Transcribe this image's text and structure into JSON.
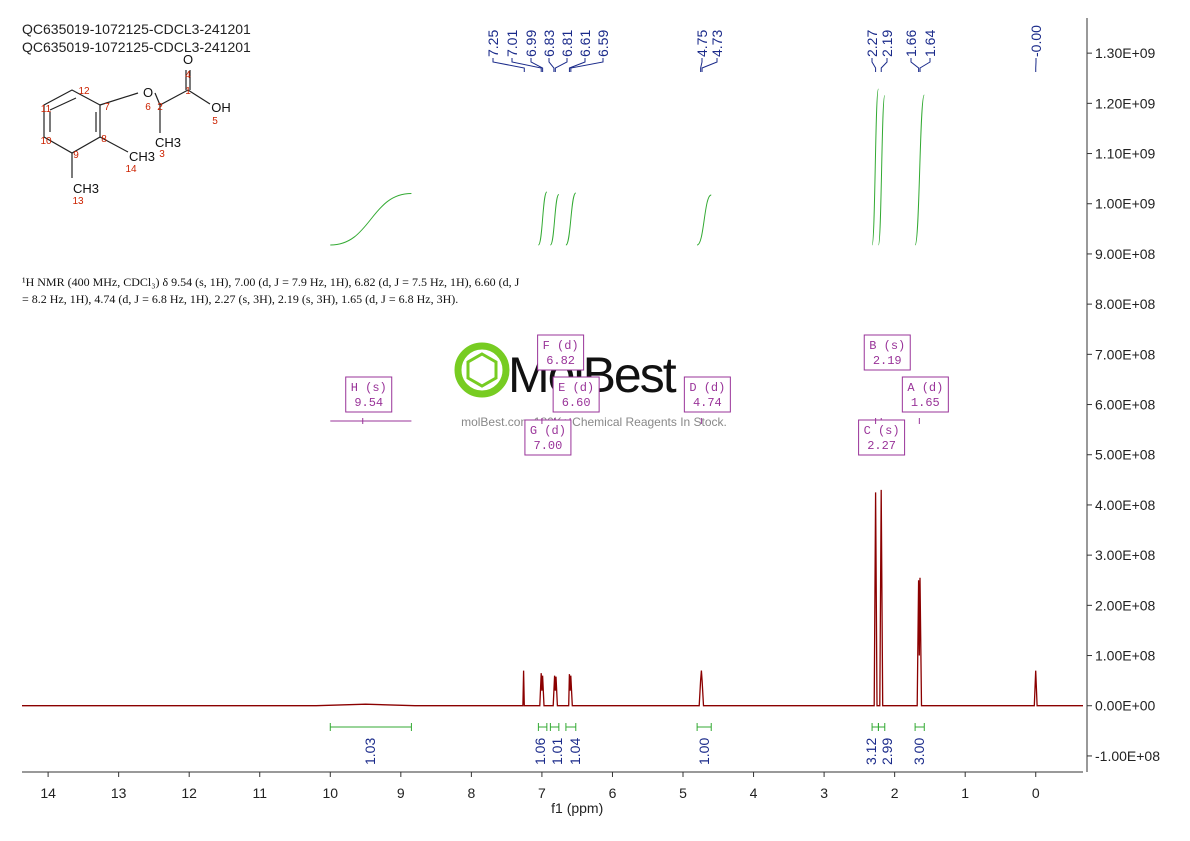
{
  "chart_data": {
    "type": "nmr",
    "title_lines": [
      "QC635019-1072125-CDCL3-241201",
      "QC635019-1072125-CDCL3-241201"
    ],
    "xlabel": "f1 (ppm)",
    "xlim": [
      14.37,
      -0.67
    ],
    "xticks": [
      14,
      13,
      12,
      11,
      10,
      9,
      8,
      7,
      6,
      5,
      4,
      3,
      2,
      1,
      0
    ],
    "ylim": [
      -132000000,
      1370000000
    ],
    "yticks": [
      {
        "value": -100000000,
        "label": "-1.00E+08"
      },
      {
        "value": 0,
        "label": "0.00E+00"
      },
      {
        "value": 100000000,
        "label": "1.00E+08"
      },
      {
        "value": 200000000,
        "label": "2.00E+08"
      },
      {
        "value": 300000000,
        "label": "3.00E+08"
      },
      {
        "value": 400000000,
        "label": "4.00E+08"
      },
      {
        "value": 500000000,
        "label": "5.00E+08"
      },
      {
        "value": 600000000,
        "label": "6.00E+08"
      },
      {
        "value": 700000000,
        "label": "7.00E+08"
      },
      {
        "value": 800000000,
        "label": "8.00E+08"
      },
      {
        "value": 900000000,
        "label": "9.00E+08"
      },
      {
        "value": 1000000000,
        "label": "1.00E+09"
      },
      {
        "value": 1100000000,
        "label": "1.10E+09"
      },
      {
        "value": 1200000000,
        "label": "1.20E+09"
      },
      {
        "value": 1300000000,
        "label": "1.30E+09"
      }
    ],
    "series": [
      {
        "color": "#8b0000",
        "x": [
          14.37,
          10.2,
          9.5,
          8.8,
          7.27,
          7.26,
          7.25,
          7.03,
          7.01,
          7.0,
          6.99,
          6.97,
          6.84,
          6.82,
          6.81,
          6.8,
          6.78,
          6.62,
          6.61,
          6.6,
          6.59,
          6.57,
          4.77,
          4.75,
          4.74,
          4.73,
          4.71,
          2.29,
          2.27,
          2.25,
          2.21,
          2.19,
          2.17,
          1.68,
          1.66,
          1.65,
          1.64,
          1.62,
          0.02,
          0,
          -0.02,
          -0.67
        ],
        "values": [
          0,
          0,
          3000000,
          0,
          0,
          70000000,
          0,
          0,
          65000000,
          30000000,
          60000000,
          0,
          0,
          60000000,
          30000000,
          58000000,
          0,
          0,
          63000000,
          30000000,
          60000000,
          0,
          0,
          50000000,
          70000000,
          50000000,
          0,
          0,
          425000000,
          0,
          0,
          430000000,
          0,
          0,
          250000000,
          100000000,
          255000000,
          0,
          0,
          70000000,
          0,
          0
        ]
      }
    ],
    "peaks": [
      7.25,
      7.01,
      6.99,
      6.83,
      6.81,
      6.61,
      6.59,
      4.75,
      4.73,
      2.27,
      2.19,
      1.66,
      1.64,
      {
        "value": 0,
        "label": "-0.00"
      }
    ],
    "integrals": {
      "ranges": [
        [
          10.0,
          8.85
        ],
        [
          7.05,
          6.93
        ],
        [
          6.88,
          6.76
        ],
        [
          6.66,
          6.52
        ],
        [
          4.8,
          4.6
        ],
        [
          2.32,
          2.23
        ],
        [
          2.23,
          2.14
        ],
        [
          1.71,
          1.58
        ]
      ],
      "values": [
        1.03,
        1.06,
        1.01,
        1.04,
        1.0,
        3.12,
        2.99,
        3.0
      ],
      "value_labels": [
        "1.03",
        "1.06",
        "1.01",
        "1.04",
        "1.00",
        "3.12",
        "2.99",
        "3.00"
      ]
    },
    "multiplets": {
      "labels": [
        "H (s)",
        "F (d)",
        "E (d)",
        "G (d)",
        "D (d)",
        "B (s)",
        "A (d)",
        "C (s)"
      ],
      "shifts": [
        9.54,
        6.82,
        6.6,
        7.0,
        4.74,
        2.19,
        1.65,
        2.27
      ],
      "shift_labels": [
        "9.54",
        "6.82",
        "6.60",
        "7.00",
        "4.74",
        "2.19",
        "1.65",
        "2.27"
      ]
    },
    "description": [
      "¹H NMR (400 MHz, CDCl₃) δ 9.54 (s, 1H), 7.00 (d, J = 7.9 Hz, 1H), 6.82 (d, J = 7.5 Hz, 1H), 6.60 (d, J",
      "= 8.2 Hz, 1H), 4.74 (d, J = 6.8 Hz, 1H), 2.27 (s, 3H), 2.19 (s, 3H), 1.65 (d, J = 6.8 Hz, 3H)."
    ],
    "structure": {
      "atoms": [
        "O",
        "4",
        "1",
        "OH",
        "5",
        "2",
        "O",
        "6",
        "7",
        "12",
        "11",
        "10",
        "9",
        "8",
        "CH3",
        "3",
        "CH3",
        "14",
        "CH3",
        "13"
      ]
    },
    "watermark": [
      "MolBest",
      "molBest.com 180K+ Chemical Reagents In Stock."
    ]
  }
}
